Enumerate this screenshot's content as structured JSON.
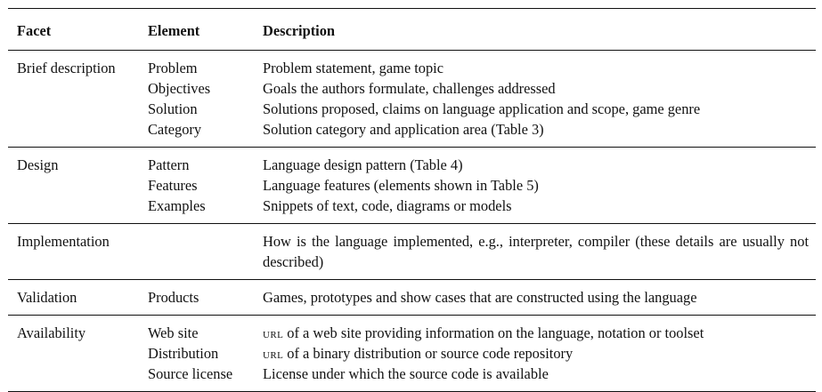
{
  "table": {
    "headers": {
      "facet": "Facet",
      "element": "Element",
      "description": "Description"
    },
    "groups": [
      {
        "facet": "Brief description",
        "rows": [
          {
            "element": "Problem",
            "description": "Problem statement, game topic"
          },
          {
            "element": "Objectives",
            "description": "Goals the authors formulate, challenges addressed"
          },
          {
            "element": "Solution",
            "description": "Solutions proposed, claims on language application and scope, game genre"
          },
          {
            "element": "Category",
            "description": "Solution category and application area (Table 3)"
          }
        ]
      },
      {
        "facet": "Design",
        "rows": [
          {
            "element": "Pattern",
            "description": "Language design pattern (Table 4)"
          },
          {
            "element": "Features",
            "description": "Language features (elements shown in Table 5)"
          },
          {
            "element": "Examples",
            "description": "Snippets of text, code, diagrams or models"
          }
        ]
      },
      {
        "facet": "Implementation",
        "rows": [
          {
            "element": "",
            "description": "How is the language implemented, e.g., interpreter, compiler (these details are usually not described)"
          }
        ]
      },
      {
        "facet": "Validation",
        "rows": [
          {
            "element": "Products",
            "description": "Games, prototypes and show cases that are constructed using the language"
          }
        ]
      },
      {
        "facet": "Availability",
        "rows": [
          {
            "element": "Web site",
            "description_prefix": "URL",
            "description": " of a web site providing information on the language, notation or toolset"
          },
          {
            "element": "Distribution",
            "description_prefix": "URL",
            "description": " of a binary distribution or source code repository"
          },
          {
            "element": "Source license",
            "description": "License under which the source code is available"
          }
        ]
      }
    ]
  }
}
